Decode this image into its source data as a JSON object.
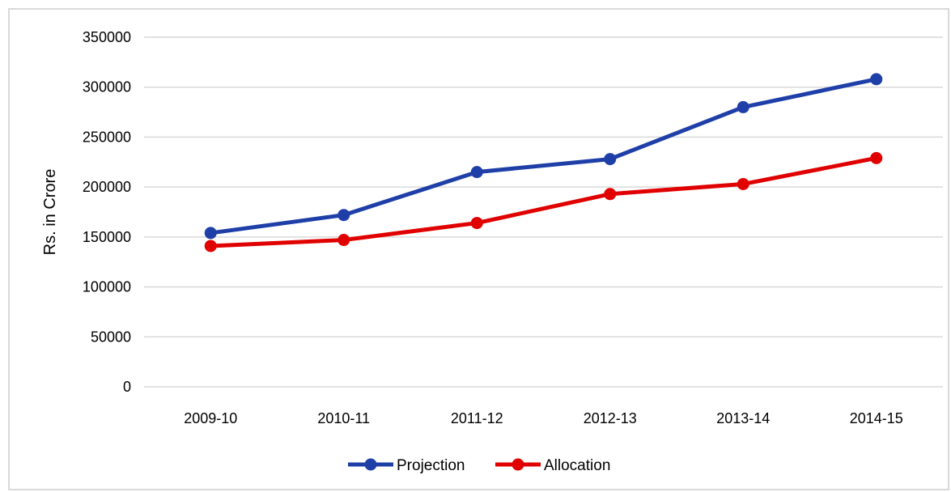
{
  "chart_data": {
    "type": "line",
    "categories": [
      "2009-10",
      "2010-11",
      "2011-12",
      "2012-13",
      "2013-14",
      "2014-15"
    ],
    "series": [
      {
        "name": "Projection",
        "color": "#1f3fa8",
        "values": [
          154000,
          172000,
          215000,
          228000,
          280000,
          308000
        ]
      },
      {
        "name": "Allocation",
        "color": "#e00000",
        "values": [
          141000,
          147000,
          164000,
          193000,
          203000,
          229000
        ]
      }
    ],
    "ylabel": "Rs. in Crore",
    "ylim": [
      0,
      350000
    ],
    "yticks": [
      "0",
      "50000",
      "100000",
      "150000",
      "200000",
      "250000",
      "300000",
      "350000"
    ],
    "grid": true,
    "legend_position": "bottom"
  }
}
